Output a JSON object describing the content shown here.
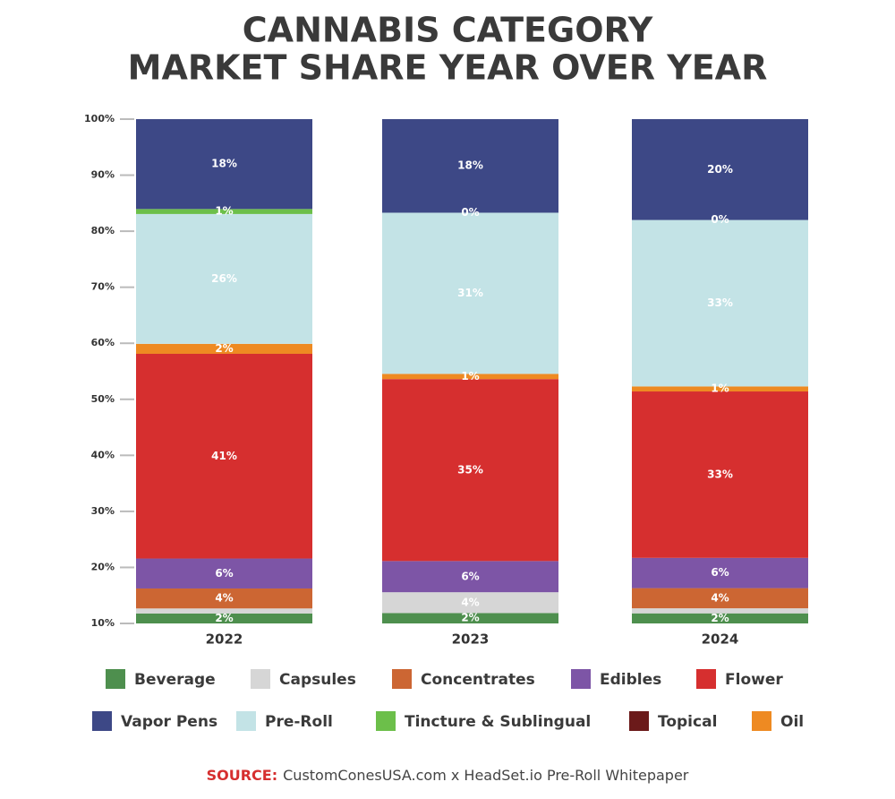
{
  "chart_data": {
    "type": "stacked_bar_100",
    "title_lines": [
      "CANNABIS CATEGORY",
      "MARKET SHARE YEAR OVER YEAR"
    ],
    "categories": [
      "2022",
      "2023",
      "2024"
    ],
    "ylim": [
      10,
      100
    ],
    "yticks": [
      {
        "value": 10,
        "label": "10%"
      },
      {
        "value": 20,
        "label": "20%"
      },
      {
        "value": 30,
        "label": "30%"
      },
      {
        "value": 40,
        "label": "40%"
      },
      {
        "value": 50,
        "label": "50%"
      },
      {
        "value": 60,
        "label": "60%"
      },
      {
        "value": 70,
        "label": "70%"
      },
      {
        "value": 80,
        "label": "80%"
      },
      {
        "value": 90,
        "label": "90%"
      },
      {
        "value": 100,
        "label": "100%"
      }
    ],
    "series": [
      {
        "name": "Beverage",
        "color": "#4e8f4e",
        "values": [
          2,
          2,
          2
        ],
        "value_labels": [
          "2%",
          "2%",
          "2%"
        ]
      },
      {
        "name": "Capsules",
        "color": "#d6d6d6",
        "values": [
          1,
          4,
          1
        ],
        "value_labels": [
          null,
          "4%",
          null
        ]
      },
      {
        "name": "Concentrates",
        "color": "#cc6633",
        "values": [
          4,
          0,
          4
        ],
        "value_labels": [
          "4%",
          null,
          "4%"
        ]
      },
      {
        "name": "Edibles",
        "color": "#7d55a6",
        "values": [
          6,
          6,
          6
        ],
        "value_labels": [
          "6%",
          "6%",
          "6%"
        ]
      },
      {
        "name": "Flower",
        "color": "#d62f2f",
        "values": [
          41,
          35,
          33
        ],
        "value_labels": [
          "41%",
          "35%",
          "33%"
        ]
      },
      {
        "name": "Oil",
        "color": "#ee8a22",
        "values": [
          2,
          1,
          1
        ],
        "value_labels": [
          "2%",
          "1%",
          "1%"
        ]
      },
      {
        "name": "Pre-Roll",
        "color": "#c3e3e6",
        "values": [
          26,
          31,
          33
        ],
        "value_labels": [
          "26%",
          "31%",
          "33%"
        ]
      },
      {
        "name": "Tincture & Sublingual",
        "color": "#6cbf4a",
        "values": [
          1,
          0,
          0
        ],
        "value_labels": [
          "1%",
          "0%",
          "0%"
        ]
      },
      {
        "name": "Topical",
        "color": "#6b1a1a",
        "values": [
          0,
          0,
          0
        ],
        "value_labels": [
          null,
          null,
          null
        ]
      },
      {
        "name": "Vapor Pens",
        "color": "#3d4886",
        "values": [
          18,
          18,
          20
        ],
        "value_labels": [
          "18%",
          "18%",
          "20%"
        ]
      }
    ],
    "source": {
      "label": "SOURCE:",
      "text": "CustomConesUSA.com x HeadSet.io Pre-Roll Whitepaper"
    }
  }
}
